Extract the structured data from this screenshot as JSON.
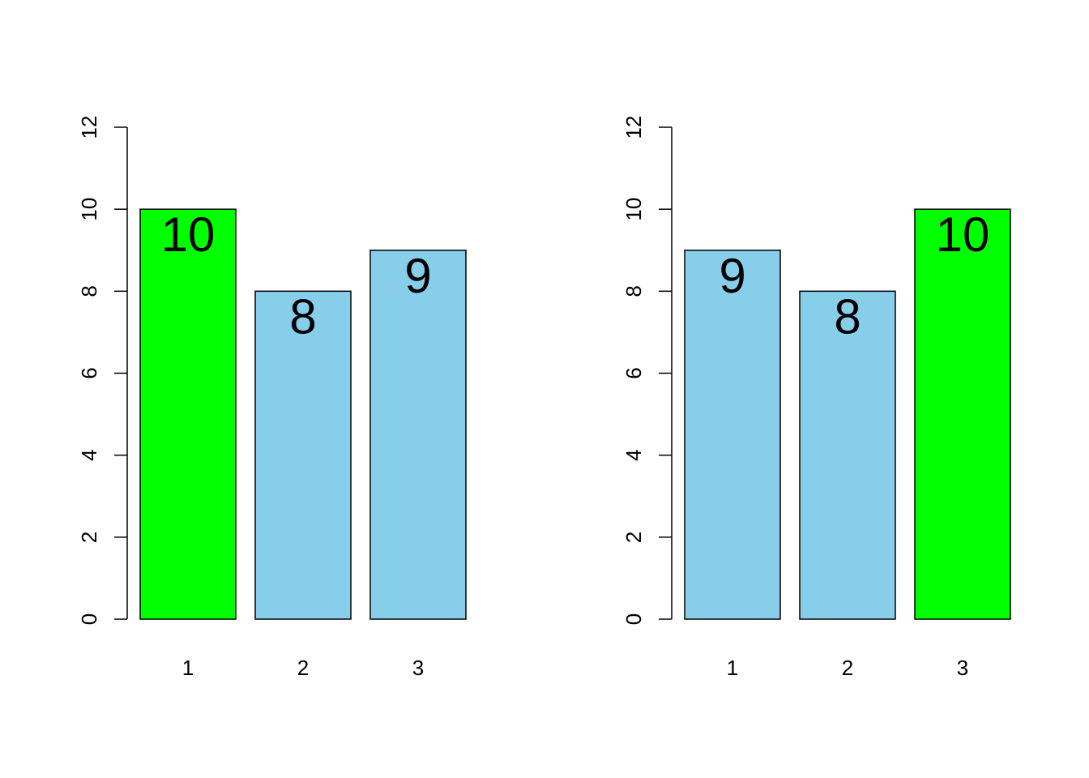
{
  "chart_data": [
    {
      "type": "bar",
      "categories": [
        "1",
        "2",
        "3"
      ],
      "values": [
        10,
        8,
        9
      ],
      "bar_colors": [
        "#00ff00",
        "#87ceeb",
        "#87ceeb"
      ],
      "ylim": [
        0,
        12
      ],
      "yticks": [
        0,
        2,
        4,
        6,
        8,
        10,
        12
      ],
      "data_labels": [
        "10",
        "8",
        "9"
      ],
      "title": "",
      "xlabel": "",
      "ylabel": "",
      "grid": false
    },
    {
      "type": "bar",
      "categories": [
        "1",
        "2",
        "3"
      ],
      "values": [
        9,
        8,
        10
      ],
      "bar_colors": [
        "#87ceeb",
        "#87ceeb",
        "#00ff00"
      ],
      "ylim": [
        0,
        12
      ],
      "yticks": [
        0,
        2,
        4,
        6,
        8,
        10,
        12
      ],
      "data_labels": [
        "9",
        "8",
        "10"
      ],
      "title": "",
      "xlabel": "",
      "ylabel": "",
      "grid": false
    }
  ]
}
